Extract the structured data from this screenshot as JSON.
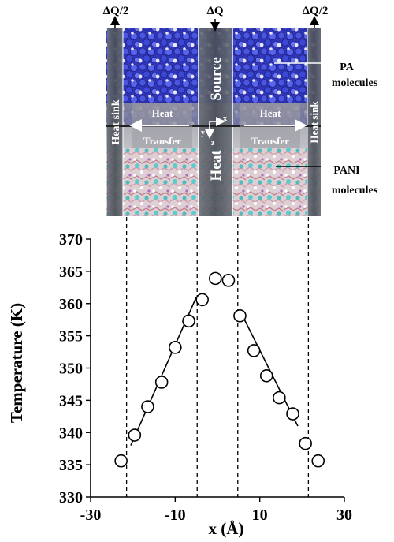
{
  "figure": {
    "top_labels": {
      "left": "ΔQ/2",
      "center": "ΔQ",
      "right": "ΔQ/2"
    },
    "sim_labels": {
      "heat_sink": "Heat sink",
      "source": "Source",
      "heat": "Heat",
      "transfer": "Transfer",
      "axis_x": "x",
      "axis_y": "y",
      "axis_z": "z"
    },
    "callouts": {
      "pa_line1": "PA",
      "pa_line2": "molecules",
      "pani_line1": "PANI",
      "pani_line2": "molecules"
    },
    "colors": {
      "pa": "#3a44c9",
      "pani": "#e6b9c4",
      "pani_atoms": "#3ec4c2",
      "panel": "#555a63"
    }
  },
  "chart_data": {
    "type": "scatter",
    "xlabel": "x (Å)",
    "ylabel": "Temperature (K)",
    "xlim": [
      -30,
      30
    ],
    "ylim": [
      330,
      370
    ],
    "xticks": [
      -30,
      -10,
      10,
      30
    ],
    "yticks": [
      330,
      335,
      340,
      345,
      350,
      355,
      360,
      365,
      370
    ],
    "grid": false,
    "points": [
      {
        "x": -22.8,
        "y": 335.6
      },
      {
        "x": -19.6,
        "y": 339.6
      },
      {
        "x": -16.5,
        "y": 344.0
      },
      {
        "x": -13.2,
        "y": 347.8
      },
      {
        "x": -10.0,
        "y": 353.2
      },
      {
        "x": -6.8,
        "y": 357.3
      },
      {
        "x": -3.6,
        "y": 360.6
      },
      {
        "x": -0.5,
        "y": 363.9
      },
      {
        "x": 2.6,
        "y": 363.6
      },
      {
        "x": 5.3,
        "y": 358.1
      },
      {
        "x": 8.6,
        "y": 352.7
      },
      {
        "x": 11.6,
        "y": 348.8
      },
      {
        "x": 14.6,
        "y": 345.4
      },
      {
        "x": 17.8,
        "y": 342.9
      },
      {
        "x": 20.8,
        "y": 338.3
      },
      {
        "x": 23.8,
        "y": 335.6
      }
    ],
    "fit_lines": [
      {
        "x": [
          -20.5,
          -5.0
        ],
        "y": [
          338.0,
          361.0
        ]
      },
      {
        "x": [
          6.0,
          19.0
        ],
        "y": [
          358.0,
          341.0
        ]
      }
    ],
    "dashed_guides_x": [
      -21.5,
      -4.8,
      4.8,
      21.5
    ]
  }
}
